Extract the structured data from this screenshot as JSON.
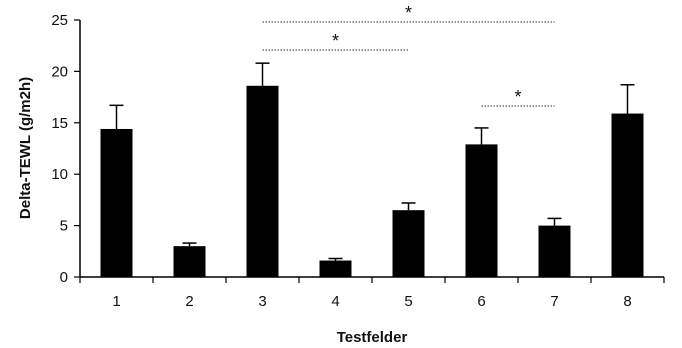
{
  "chart_data": {
    "type": "bar",
    "title": "",
    "xlabel": "Testfelder",
    "ylabel": "Delta-TEWL (g/m2h)",
    "ylim": [
      0,
      25
    ],
    "yticks": [
      "0",
      "5",
      "10",
      "15",
      "20",
      "25"
    ],
    "categories": [
      "1",
      "2",
      "3",
      "4",
      "5",
      "6",
      "7",
      "8"
    ],
    "values": [
      14.4,
      3.0,
      18.6,
      1.6,
      6.5,
      12.9,
      5.0,
      15.9
    ],
    "errors": [
      2.3,
      0.3,
      2.2,
      0.2,
      0.7,
      1.6,
      0.7,
      2.8
    ],
    "significance": [
      {
        "from": "3",
        "to": "7",
        "label": "*"
      },
      {
        "from": "3",
        "to": "5",
        "label": "*"
      },
      {
        "from": "6",
        "to": "7",
        "label": "*"
      }
    ],
    "colors": {
      "bar": "#000000",
      "axis": "#000000",
      "bracket": "#555555"
    },
    "grid": false,
    "legend": "none"
  }
}
